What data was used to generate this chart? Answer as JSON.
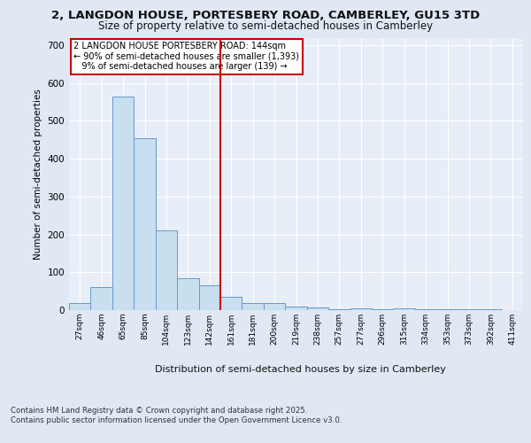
{
  "title1": "2, LANGDON HOUSE, PORTESBERY ROAD, CAMBERLEY, GU15 3TD",
  "title2": "Size of property relative to semi-detached houses in Camberley",
  "xlabel": "Distribution of semi-detached houses by size in Camberley",
  "ylabel": "Number of semi-detached properties",
  "categories": [
    "27sqm",
    "46sqm",
    "65sqm",
    "85sqm",
    "104sqm",
    "123sqm",
    "142sqm",
    "161sqm",
    "181sqm",
    "200sqm",
    "219sqm",
    "238sqm",
    "257sqm",
    "277sqm",
    "296sqm",
    "315sqm",
    "334sqm",
    "353sqm",
    "373sqm",
    "392sqm",
    "411sqm"
  ],
  "bar_values": [
    18,
    62,
    565,
    455,
    210,
    85,
    65,
    35,
    18,
    18,
    10,
    8,
    3,
    5,
    2,
    5,
    2,
    2,
    2,
    2,
    1
  ],
  "property_label": "2 LANGDON HOUSE PORTESBERY ROAD: 144sqm",
  "annotation_line": "← 90% of semi-detached houses are smaller (1,393)",
  "annotation_line2": "9% of semi-detached houses are larger (139) →",
  "vline_x": 6.5,
  "bar_color": "#c8dff0",
  "bar_edge_color": "#6699cc",
  "vline_color": "#cc0000",
  "annotation_box_color": "#cc0000",
  "bg_color": "#e0e8f4",
  "plot_bg_color": "#e8eef8",
  "footer1": "Contains HM Land Registry data © Crown copyright and database right 2025.",
  "footer2": "Contains public sector information licensed under the Open Government Licence v3.0.",
  "ylim": [
    0,
    720
  ],
  "yticks": [
    0,
    100,
    200,
    300,
    400,
    500,
    600,
    700
  ]
}
